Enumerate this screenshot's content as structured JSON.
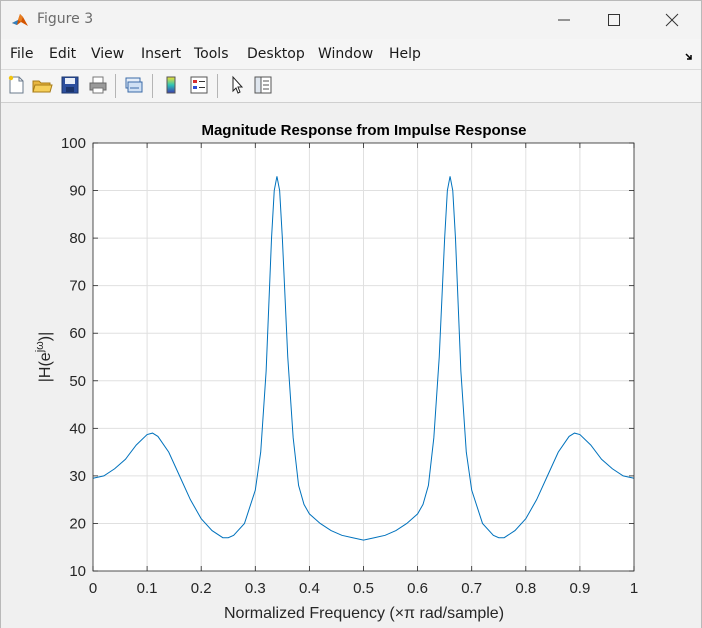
{
  "window": {
    "title": "Figure 3",
    "icons": {
      "app": "matlab-icon",
      "minimize": "minimize-icon",
      "maximize": "maximize-icon",
      "close": "close-icon"
    }
  },
  "menubar": {
    "items": [
      "File",
      "Edit",
      "View",
      "Insert",
      "Tools",
      "Desktop",
      "Window",
      "Help"
    ],
    "dock_icon": "dock-arrow-icon"
  },
  "toolbar": {
    "buttons": [
      "new-figure-icon",
      "open-file-icon",
      "save-icon",
      "print-icon",
      "link-plot-icon",
      "colorbar-icon",
      "legend-icon",
      "pointer-icon",
      "property-inspector-icon"
    ]
  },
  "colors": {
    "line": "#0072bd",
    "grid": "#e0e0e0",
    "axes": "#262626",
    "background": "#f0f0f0"
  },
  "chart_data": {
    "type": "line",
    "title": "Magnitude Response from Impulse Response",
    "xlabel": "Normalized Frequency (×π rad/sample)",
    "ylabel_base": "|H(e",
    "ylabel_sup": "jω",
    "ylabel_end": ")|",
    "xlim": [
      0,
      1
    ],
    "ylim": [
      10,
      100
    ],
    "xticks": [
      0,
      0.1,
      0.2,
      0.3,
      0.4,
      0.5,
      0.6,
      0.7,
      0.8,
      0.9,
      1
    ],
    "xtick_labels": [
      "0",
      "0.1",
      "0.2",
      "0.3",
      "0.4",
      "0.5",
      "0.6",
      "0.7",
      "0.8",
      "0.9",
      "1"
    ],
    "yticks": [
      10,
      20,
      30,
      40,
      50,
      60,
      70,
      80,
      90,
      100
    ],
    "ytick_labels": [
      "10",
      "20",
      "30",
      "40",
      "50",
      "60",
      "70",
      "80",
      "90",
      "100"
    ],
    "grid": true,
    "series": [
      {
        "x": [
          0,
          0.02,
          0.04,
          0.06,
          0.08,
          0.1,
          0.11,
          0.12,
          0.14,
          0.16,
          0.18,
          0.2,
          0.22,
          0.24,
          0.25,
          0.26,
          0.28,
          0.3,
          0.31,
          0.32,
          0.33,
          0.335,
          0.34,
          0.345,
          0.35,
          0.36,
          0.37,
          0.38,
          0.39,
          0.4,
          0.42,
          0.44,
          0.46,
          0.48,
          0.5,
          0.52,
          0.54,
          0.56,
          0.58,
          0.6,
          0.61,
          0.62,
          0.63,
          0.64,
          0.65,
          0.655,
          0.66,
          0.665,
          0.67,
          0.68,
          0.69,
          0.7,
          0.72,
          0.74,
          0.75,
          0.76,
          0.78,
          0.8,
          0.82,
          0.84,
          0.86,
          0.88,
          0.89,
          0.9,
          0.92,
          0.94,
          0.96,
          0.98,
          1
        ],
        "y": [
          29.5,
          30.0,
          31.5,
          33.5,
          36.5,
          38.7,
          39.0,
          38.3,
          35.0,
          30.0,
          25.0,
          21.0,
          18.5,
          17.0,
          17.0,
          17.5,
          20.0,
          27.0,
          35.0,
          52.0,
          80.0,
          90.0,
          93.0,
          90.0,
          80.0,
          55.0,
          38.0,
          28.0,
          24.0,
          22.0,
          20.0,
          18.5,
          17.5,
          17.0,
          16.5,
          17.0,
          17.5,
          18.5,
          20.0,
          22.0,
          24.0,
          28.0,
          38.0,
          55.0,
          80.0,
          90.0,
          93.0,
          90.0,
          80.0,
          52.0,
          35.0,
          27.0,
          20.0,
          17.5,
          17.0,
          17.0,
          18.5,
          21.0,
          25.0,
          30.0,
          35.0,
          38.3,
          39.0,
          38.7,
          36.5,
          33.5,
          31.5,
          30.0,
          29.5
        ]
      }
    ]
  }
}
